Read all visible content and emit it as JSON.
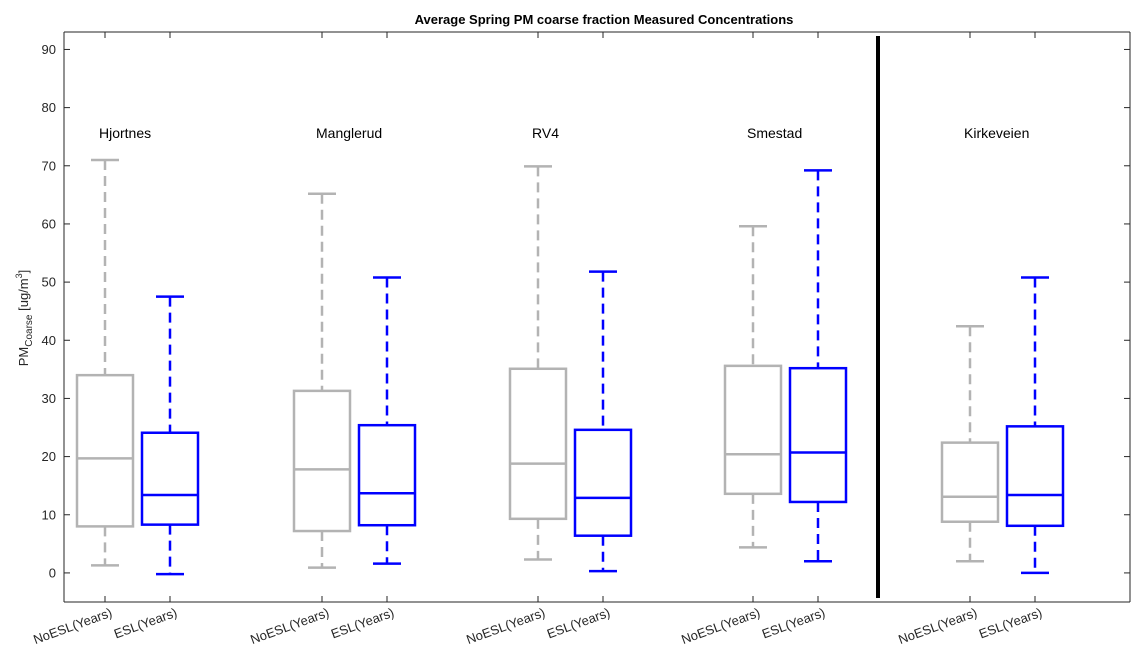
{
  "chart_data": {
    "type": "box",
    "title": "Average Spring PM coarse fraction Measured Concentrations",
    "ylabel": {
      "main": "PM",
      "subscript": "Coarse",
      "unit_open": " [ug/m",
      "superscript": "3",
      "unit_close": "]"
    },
    "ylim": [
      -5,
      93
    ],
    "yticks": [
      0,
      10,
      20,
      30,
      40,
      50,
      60,
      70,
      80,
      90
    ],
    "grid": false,
    "colors": {
      "NoESL": "#b3b3b3",
      "ESL": "#0000ff",
      "separator": "#000000"
    },
    "sites": [
      {
        "name": "Hjortnes",
        "boxes": [
          {
            "category": "NoESL(Years)",
            "group": "NoESL",
            "min": 1.3,
            "q1": 8.0,
            "median": 19.7,
            "q3": 34.0,
            "max": 71.0
          },
          {
            "category": "ESL(Years)",
            "group": "ESL",
            "min": -0.2,
            "q1": 8.3,
            "median": 13.4,
            "q3": 24.1,
            "max": 47.5
          }
        ]
      },
      {
        "name": "Manglerud",
        "boxes": [
          {
            "category": "NoESL(Years)",
            "group": "NoESL",
            "min": 0.9,
            "q1": 7.2,
            "median": 17.8,
            "q3": 31.3,
            "max": 65.2
          },
          {
            "category": "ESL(Years)",
            "group": "ESL",
            "min": 1.6,
            "q1": 8.2,
            "median": 13.7,
            "q3": 25.4,
            "max": 50.8
          }
        ]
      },
      {
        "name": "RV4",
        "boxes": [
          {
            "category": "NoESL(Years)",
            "group": "NoESL",
            "min": 2.3,
            "q1": 9.3,
            "median": 18.8,
            "q3": 35.1,
            "max": 69.9
          },
          {
            "category": "ESL(Years)",
            "group": "ESL",
            "min": 0.3,
            "q1": 6.4,
            "median": 12.9,
            "q3": 24.6,
            "max": 51.8
          }
        ]
      },
      {
        "name": "Smestad",
        "boxes": [
          {
            "category": "NoESL(Years)",
            "group": "NoESL",
            "min": 4.4,
            "q1": 13.6,
            "median": 20.4,
            "q3": 35.6,
            "max": 59.6
          },
          {
            "category": "ESL(Years)",
            "group": "ESL",
            "min": 2.0,
            "q1": 12.2,
            "median": 20.7,
            "q3": 35.2,
            "max": 69.2
          }
        ]
      },
      {
        "name": "Kirkeveien",
        "boxes": [
          {
            "category": "NoESL(Years)",
            "group": "NoESL",
            "min": 2.0,
            "q1": 8.8,
            "median": 13.1,
            "q3": 22.4,
            "max": 42.4
          },
          {
            "category": "ESL(Years)",
            "group": "ESL",
            "min": 0.0,
            "q1": 8.1,
            "median": 13.4,
            "q3": 25.2,
            "max": 50.8
          }
        ]
      }
    ],
    "separator_between": [
      "Smestad",
      "Kirkeveien"
    ]
  }
}
